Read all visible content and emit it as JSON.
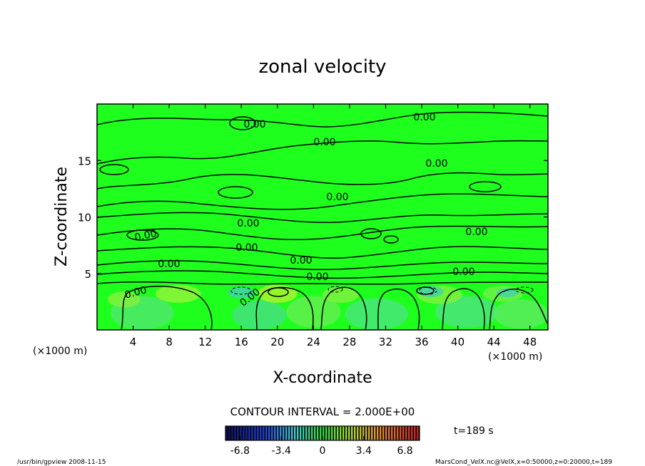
{
  "chart_data": {
    "type": "heatmap",
    "title": "zonal velocity",
    "xlabel": "X-coordinate",
    "ylabel": "Z-coordinate",
    "x_unit": "(×1000 m)",
    "y_unit": "(×1000 m)",
    "xlim": [
      0,
      50
    ],
    "ylim": [
      0,
      20
    ],
    "x_ticks": [
      "4",
      "8",
      "12",
      "16",
      "20",
      "24",
      "28",
      "32",
      "36",
      "40",
      "44",
      "48"
    ],
    "y_ticks": [
      "5",
      "10",
      "15"
    ],
    "contour_interval_text": "CONTOUR INTERVAL = 2.000E+00",
    "contour_labels": [
      "0.00",
      "0.00",
      "0.00",
      "0.00",
      "0.00",
      "0.00",
      "0.00",
      "0.00",
      "0.00",
      "0.00",
      "0.00",
      "0.00",
      "0.00",
      "0.00",
      "0.00"
    ],
    "colorbar": {
      "range": [
        -8,
        8
      ],
      "tick_labels": [
        "-6.8",
        "-3.4",
        "0",
        "3.4",
        "6.8"
      ],
      "tick_values": [
        -6.8,
        -3.4,
        0,
        3.4,
        6.8
      ]
    },
    "time_label": "t=189  s",
    "grid": false
  },
  "footer": {
    "left": "/usr/bin/gpview  2008-11-15",
    "right": "MarsCond_VelX.nc@VelX,x=0:50000,z=0:20000,t=189"
  },
  "colors": {
    "field_background": "#1eff1e",
    "contour_line": "#000000"
  }
}
